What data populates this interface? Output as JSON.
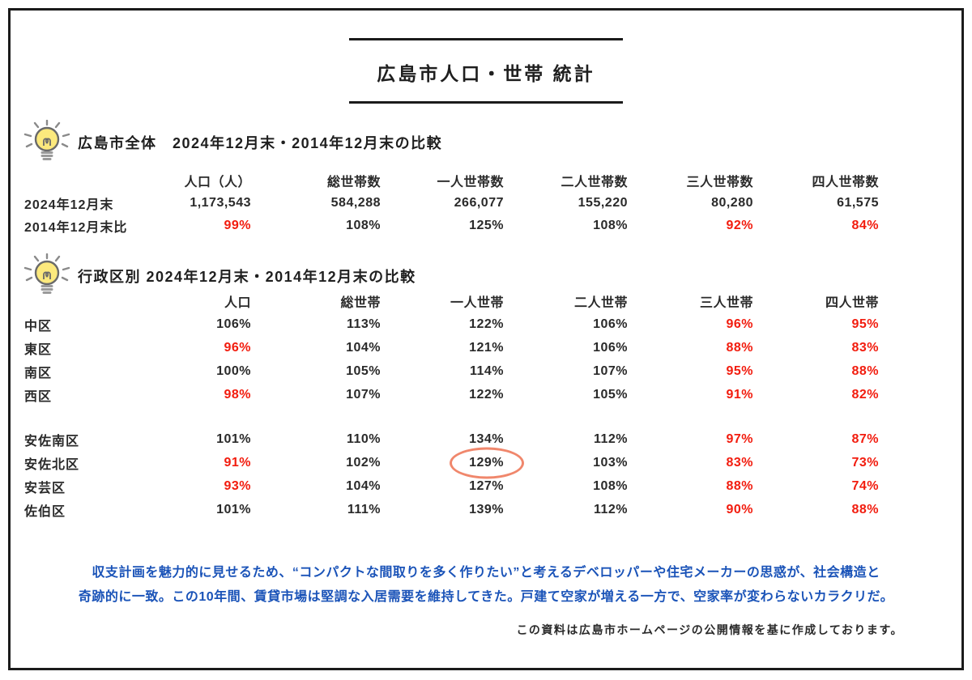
{
  "page": {
    "title": "広島市人口・世帯 統計",
    "source_note": "この資料は広島市ホームページの公開情報を基に作成しております。"
  },
  "colors": {
    "red": "#f21c0e",
    "blue": "#1a53b8",
    "circle_highlight": "#f0876c",
    "border": "#1b1b1b",
    "bulb_yellow": "#fce97d"
  },
  "icons": {
    "section1": "lightbulb-icon",
    "section2": "lightbulb-icon"
  },
  "tables": [
    {
      "heading": "広島市全体　2024年12月末・2014年12月末の比較",
      "columns": [
        "人口（人）",
        "総世帯数",
        "一人世帯数",
        "二人世帯数",
        "三人世帯数",
        "四人世帯数"
      ],
      "groups": [
        [
          {
            "label": "2024年12月末",
            "cells": [
              {
                "text": "1,173,543"
              },
              {
                "text": "584,288"
              },
              {
                "text": "266,077"
              },
              {
                "text": "155,220"
              },
              {
                "text": "80,280"
              },
              {
                "text": "61,575"
              }
            ]
          },
          {
            "label": "2014年12月末比",
            "cells": [
              {
                "text": "99%",
                "red": true
              },
              {
                "text": "108%"
              },
              {
                "text": "125%"
              },
              {
                "text": "108%"
              },
              {
                "text": "92%",
                "red": true
              },
              {
                "text": "84%",
                "red": true
              }
            ]
          }
        ]
      ]
    },
    {
      "heading": "行政区別 2024年12月末・2014年12月末の比較",
      "columns": [
        "人口",
        "総世帯",
        "一人世帯",
        "二人世帯",
        "三人世帯",
        "四人世帯"
      ],
      "groups": [
        [
          {
            "label": "中区",
            "cells": [
              {
                "text": "106%"
              },
              {
                "text": "113%"
              },
              {
                "text": "122%"
              },
              {
                "text": "106%"
              },
              {
                "text": "96%",
                "red": true
              },
              {
                "text": "95%",
                "red": true
              }
            ]
          },
          {
            "label": "東区",
            "cells": [
              {
                "text": "96%",
                "red": true
              },
              {
                "text": "104%"
              },
              {
                "text": "121%"
              },
              {
                "text": "106%"
              },
              {
                "text": "88%",
                "red": true
              },
              {
                "text": "83%",
                "red": true
              }
            ]
          },
          {
            "label": "南区",
            "cells": [
              {
                "text": "100%"
              },
              {
                "text": "105%"
              },
              {
                "text": "114%"
              },
              {
                "text": "107%"
              },
              {
                "text": "95%",
                "red": true
              },
              {
                "text": "88%",
                "red": true
              }
            ]
          },
          {
            "label": "西区",
            "cells": [
              {
                "text": "98%",
                "red": true
              },
              {
                "text": "107%"
              },
              {
                "text": "122%"
              },
              {
                "text": "105%"
              },
              {
                "text": "91%",
                "red": true
              },
              {
                "text": "82%",
                "red": true
              }
            ]
          }
        ],
        [
          {
            "label": "安佐南区",
            "cells": [
              {
                "text": "101%"
              },
              {
                "text": "110%"
              },
              {
                "text": "134%"
              },
              {
                "text": "112%"
              },
              {
                "text": "97%",
                "red": true
              },
              {
                "text": "87%",
                "red": true
              }
            ]
          },
          {
            "label": "安佐北区",
            "cells": [
              {
                "text": "91%",
                "red": true
              },
              {
                "text": "102%"
              },
              {
                "text": "129%",
                "circled": true
              },
              {
                "text": "103%"
              },
              {
                "text": "83%",
                "red": true
              },
              {
                "text": "73%",
                "red": true
              }
            ]
          },
          {
            "label": "安芸区",
            "cells": [
              {
                "text": "93%",
                "red": true
              },
              {
                "text": "104%"
              },
              {
                "text": "127%"
              },
              {
                "text": "108%"
              },
              {
                "text": "88%",
                "red": true
              },
              {
                "text": "74%",
                "red": true
              }
            ]
          },
          {
            "label": "佐伯区",
            "cells": [
              {
                "text": "101%"
              },
              {
                "text": "111%"
              },
              {
                "text": "139%"
              },
              {
                "text": "112%"
              },
              {
                "text": "90%",
                "red": true
              },
              {
                "text": "88%",
                "red": true
              }
            ]
          }
        ]
      ]
    }
  ],
  "note": {
    "line1": "収支計画を魅力的に見せるため、“コンパクトな間取りを多く作りたい”と考えるデベロッパーや住宅メーカーの思惑が、社会構造と",
    "line2": "奇跡的に一致。この10年間、賃貸市場は堅調な入居需要を維持してきた。戸建て空家が増える一方で、空家率が変わらないカラクリだ。"
  }
}
